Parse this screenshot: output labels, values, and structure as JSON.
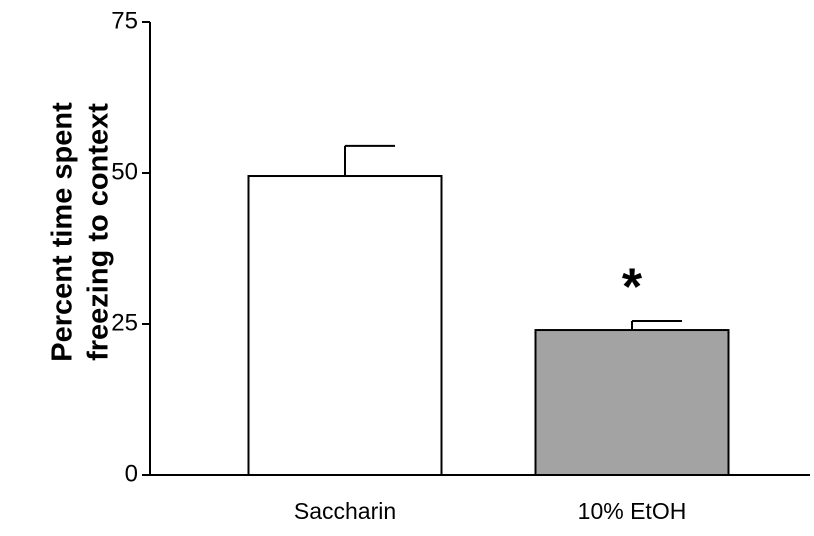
{
  "chart_data": {
    "type": "bar",
    "ylabel": [
      "Percent time spent",
      "freezing to context"
    ],
    "categories": [
      "Saccharin",
      "10% EtOH"
    ],
    "values": [
      49.5,
      24
    ],
    "errors": [
      5,
      1.5
    ],
    "colors": [
      "#ffffff",
      "#a3a3a3"
    ],
    "annotation": "*",
    "ylim": [
      0,
      75
    ],
    "yticks": [
      0,
      25,
      50,
      75
    ],
    "grid": false
  }
}
